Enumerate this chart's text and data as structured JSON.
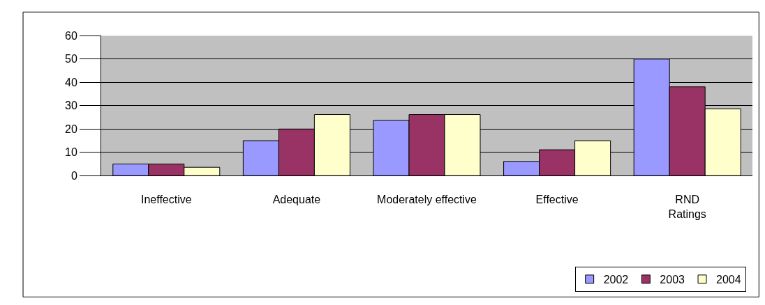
{
  "chart_data": {
    "type": "bar",
    "categories": [
      "Ineffective",
      "Adequate",
      "Moderately effective",
      "Effective",
      "RND Ratings"
    ],
    "series": [
      {
        "name": "2002",
        "color": "#9999ff",
        "values": [
          5,
          15,
          23.7,
          6.1,
          50
        ]
      },
      {
        "name": "2003",
        "color": "#993366",
        "values": [
          5,
          20,
          26.2,
          11.1,
          38.1
        ]
      },
      {
        "name": "2004",
        "color": "#ffffcc",
        "values": [
          3.6,
          26.2,
          26.2,
          15,
          28.7
        ]
      }
    ],
    "ylim": [
      0,
      60
    ],
    "yticks": [
      0,
      10,
      20,
      30,
      40,
      50,
      60
    ],
    "grid": "y",
    "legend": "bottom right"
  }
}
